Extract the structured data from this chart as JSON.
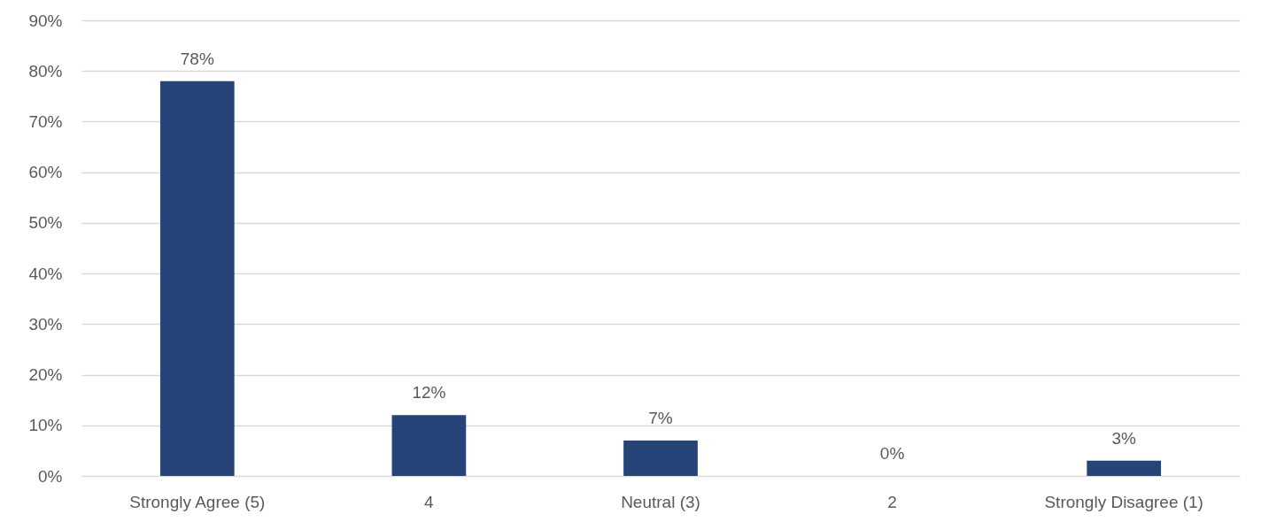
{
  "chart_data": {
    "type": "bar",
    "categories": [
      "Strongly Agree (5)",
      "4",
      "Neutral (3)",
      "2",
      "Strongly Disagree (1)"
    ],
    "values": [
      78,
      12,
      7,
      0,
      3
    ],
    "value_labels": [
      "78%",
      "12%",
      "7%",
      "0%",
      "3%"
    ],
    "color": "#264478",
    "ylim": [
      0,
      90
    ],
    "yticks": [
      {
        "value": 0,
        "label": "0%"
      },
      {
        "value": 10,
        "label": "10%"
      },
      {
        "value": 20,
        "label": "20%"
      },
      {
        "value": 30,
        "label": "30%"
      },
      {
        "value": 40,
        "label": "40%"
      },
      {
        "value": 50,
        "label": "50%"
      },
      {
        "value": 60,
        "label": "60%"
      },
      {
        "value": 70,
        "label": "70%"
      },
      {
        "value": 80,
        "label": "80%"
      },
      {
        "value": 90,
        "label": "90%"
      }
    ],
    "grid": "y"
  }
}
